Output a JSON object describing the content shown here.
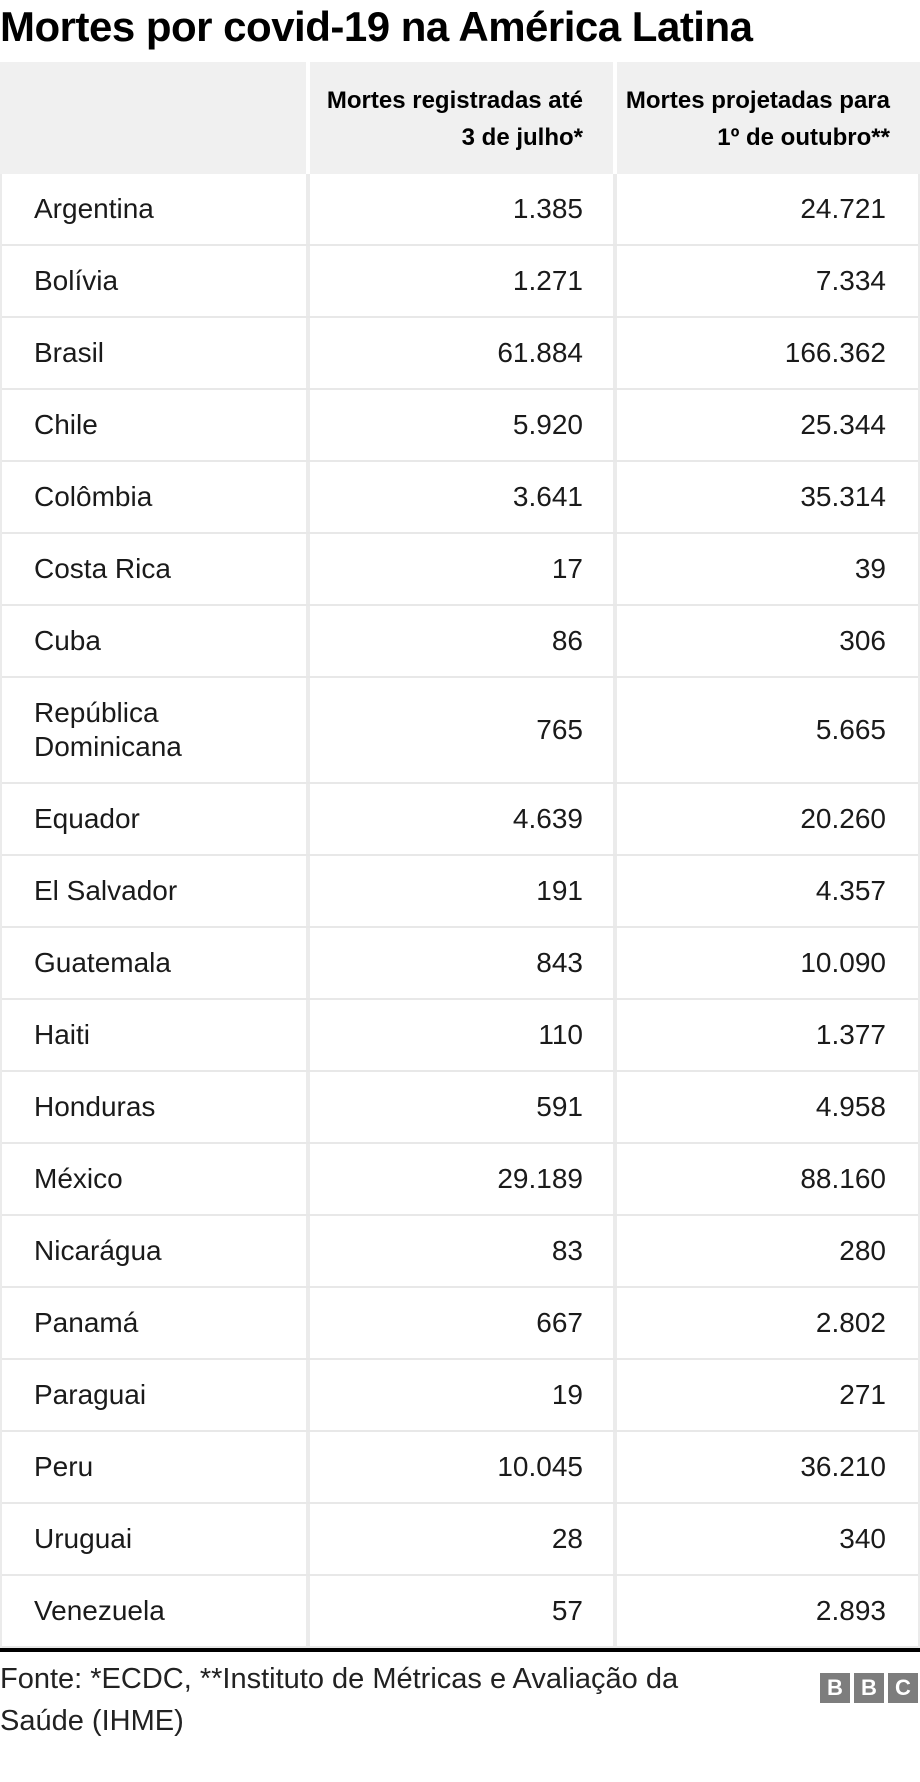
{
  "title": "Mortes por covid-19 na América Latina",
  "table": {
    "columns": [
      "",
      "Mortes registradas até 3 de julho*",
      "Mortes projetadas para 1º de outubro**"
    ],
    "rows": [
      {
        "country": "Argentina",
        "registered": "1.385",
        "projected": "24.721"
      },
      {
        "country": "Bolívia",
        "registered": "1.271",
        "projected": "7.334"
      },
      {
        "country": "Brasil",
        "registered": "61.884",
        "projected": "166.362"
      },
      {
        "country": "Chile",
        "registered": "5.920",
        "projected": "25.344"
      },
      {
        "country": "Colômbia",
        "registered": "3.641",
        "projected": "35.314"
      },
      {
        "country": "Costa Rica",
        "registered": "17",
        "projected": "39"
      },
      {
        "country": "Cuba",
        "registered": "86",
        "projected": "306"
      },
      {
        "country": "República Dominicana",
        "registered": "765",
        "projected": "5.665"
      },
      {
        "country": "Equador",
        "registered": "4.639",
        "projected": "20.260"
      },
      {
        "country": "El Salvador",
        "registered": "191",
        "projected": "4.357"
      },
      {
        "country": "Guatemala",
        "registered": "843",
        "projected": "10.090"
      },
      {
        "country": "Haiti",
        "registered": "110",
        "projected": "1.377"
      },
      {
        "country": "Honduras",
        "registered": "591",
        "projected": "4.958"
      },
      {
        "country": "México",
        "registered": "29.189",
        "projected": "88.160"
      },
      {
        "country": "Nicarágua",
        "registered": "83",
        "projected": "280"
      },
      {
        "country": "Panamá",
        "registered": "667",
        "projected": "2.802"
      },
      {
        "country": "Paraguai",
        "registered": "19",
        "projected": "271"
      },
      {
        "country": "Peru",
        "registered": "10.045",
        "projected": "36.210"
      },
      {
        "country": "Uruguai",
        "registered": "28",
        "projected": "340"
      },
      {
        "country": "Venezuela",
        "registered": "57",
        "projected": "2.893"
      }
    ]
  },
  "chart_data": {
    "type": "table",
    "title": "Mortes por covid-19 na América Latina",
    "columns": [
      "",
      "Mortes registradas até 3 de julho*",
      "Mortes projetadas para 1º de outubro**"
    ],
    "rows": [
      [
        "Argentina",
        1385,
        24721
      ],
      [
        "Bolívia",
        1271,
        7334
      ],
      [
        "Brasil",
        61884,
        166362
      ],
      [
        "Chile",
        5920,
        25344
      ],
      [
        "Colômbia",
        3641,
        35314
      ],
      [
        "Costa Rica",
        17,
        39
      ],
      [
        "Cuba",
        86,
        306
      ],
      [
        "República Dominicana",
        765,
        5665
      ],
      [
        "Equador",
        4639,
        20260
      ],
      [
        "El Salvador",
        191,
        4357
      ],
      [
        "Guatemala",
        843,
        10090
      ],
      [
        "Haiti",
        110,
        1377
      ],
      [
        "Honduras",
        591,
        4958
      ],
      [
        "México",
        29189,
        88160
      ],
      [
        "Nicarágua",
        83,
        280
      ],
      [
        "Panamá",
        667,
        2802
      ],
      [
        "Paraguai",
        19,
        271
      ],
      [
        "Peru",
        10045,
        36210
      ],
      [
        "Uruguai",
        28,
        340
      ],
      [
        "Venezuela",
        57,
        2893
      ]
    ],
    "number_format": "pt-BR (ponto como separador de milhar)"
  },
  "footer": {
    "source": "Fonte: *ECDC, **Instituto de Métricas e Avaliação da Saúde (IHME)",
    "logo": [
      "B",
      "B",
      "C"
    ]
  },
  "colors": {
    "header_bg": "#f0f0f0",
    "row_border": "#e8e8e8",
    "column_divider": "#ebebeb",
    "bottom_rule": "#000000",
    "logo_gray": "#7d7d7d",
    "title_text": "#000000",
    "body_text": "#1a1a1a",
    "footer_text": "#222222"
  }
}
